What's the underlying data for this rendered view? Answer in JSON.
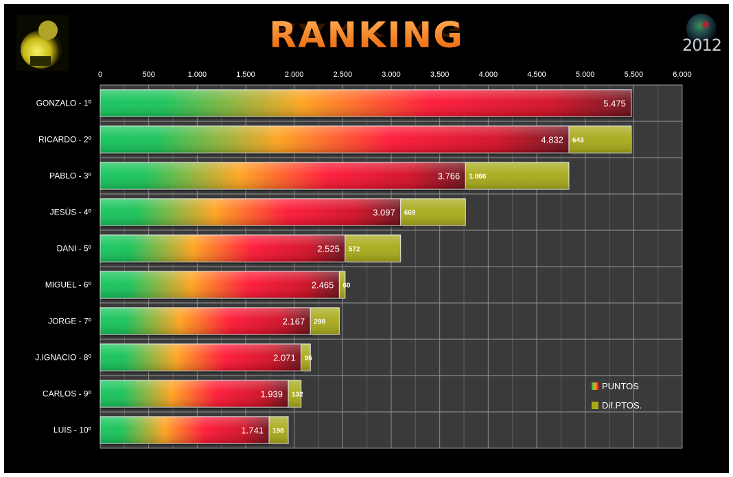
{
  "chart_data": {
    "type": "bar",
    "orientation": "horizontal",
    "stacked": true,
    "title": "RANKING",
    "categories": [
      "GONZALO - 1º",
      "RICARDO - 2º",
      "PABLO - 3º",
      "JESÚS - 4º",
      "DANI - 5º",
      "MIGUEL - 6º",
      "JORGE - 7º",
      "J.IGNACIO - 8º",
      "CARLOS - 9º",
      "LUIS - 10º"
    ],
    "series": [
      {
        "name": "PUNTOS",
        "values": [
          5475,
          4832,
          3766,
          3097,
          2525,
          2465,
          2167,
          2071,
          1939,
          1741
        ],
        "labels": [
          "5.475",
          "4.832",
          "3.766",
          "3.097",
          "2.525",
          "2.465",
          "2.167",
          "2.071",
          "1.939",
          "1.741"
        ]
      },
      {
        "name": "Dif.PTOS.",
        "values": [
          null,
          643,
          1066,
          669,
          572,
          60,
          298,
          96,
          132,
          198
        ],
        "labels": [
          "",
          "643",
          "1.066",
          "669",
          "572",
          "60",
          "298",
          "96",
          "132",
          "198"
        ]
      }
    ],
    "xlim": [
      0,
      6000
    ],
    "xticks": [
      0,
      500,
      1000,
      1500,
      2000,
      2500,
      3000,
      3500,
      4000,
      4500,
      5000,
      5500,
      6000
    ],
    "xtick_labels": [
      "0",
      "500",
      "1.000",
      "1.500",
      "2.000",
      "2.500",
      "3.000",
      "3.500",
      "4.000",
      "4.500",
      "5.000",
      "5.500",
      "6.000"
    ],
    "xaxis_position": "top",
    "grid": true,
    "legend": "bottom-right",
    "colors": {
      "background": "#000000",
      "plot_area": "#3a3a3a",
      "gridline": "#8a8a8a",
      "puntos_start": "#12c45a",
      "puntos_mid": "#ffa21a",
      "puntos_red": "#ff1433",
      "puntos_end": "#6b0f18",
      "dif": "#a7aa18",
      "title": "#ff7a10"
    }
  },
  "header": {
    "title": "RANKING",
    "logo_right_text": "2012"
  }
}
